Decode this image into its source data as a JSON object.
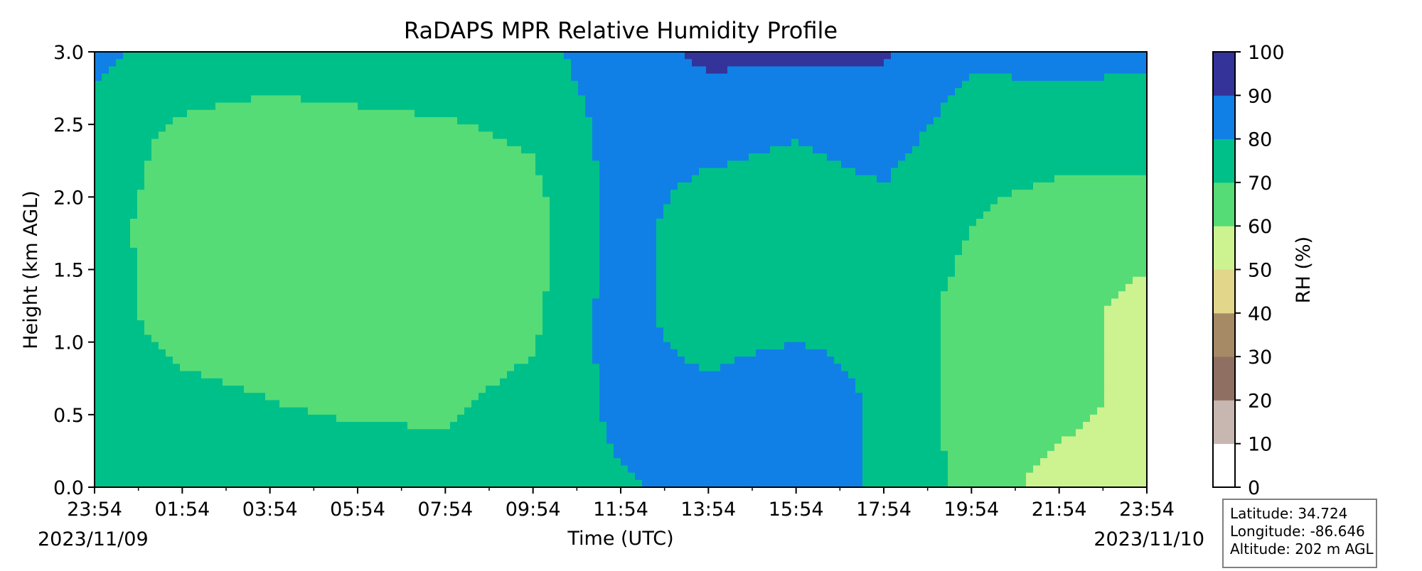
{
  "chart_data": {
    "type": "heatmap",
    "title": "RaDAPS MPR Relative Humidity Profile",
    "xlabel": "Time (UTC)",
    "ylabel": "Height (km AGL)",
    "x_tick_labels": [
      "23:54",
      "01:54",
      "03:54",
      "05:54",
      "07:54",
      "09:54",
      "11:54",
      "13:54",
      "15:54",
      "17:54",
      "19:54",
      "21:54",
      "23:54"
    ],
    "x_hours": [
      0,
      24
    ],
    "date_start": "2023/11/09",
    "date_end": "2023/11/10",
    "y_tick_labels": [
      "0.0",
      "0.5",
      "1.0",
      "1.5",
      "2.0",
      "2.5",
      "3.0"
    ],
    "ylim": [
      0,
      3
    ],
    "colorbar": {
      "label": "RH (%)",
      "levels": [
        0,
        10,
        20,
        30,
        40,
        50,
        60,
        70,
        80,
        90,
        100
      ],
      "tick_labels": [
        "0",
        "10",
        "20",
        "30",
        "40",
        "50",
        "60",
        "70",
        "80",
        "90",
        "100"
      ],
      "colors": [
        "#ffffff",
        "#c8b6b0",
        "#8f6f62",
        "#a68a65",
        "#e2d68a",
        "#cdf290",
        "#56dc76",
        "#00c08a",
        "#1080e6",
        "#34339a"
      ]
    },
    "rh_grid_note": "RH (%) sampled every 2 h (rows) at heights 0.0-3.0 km (columns, step 0.5)",
    "rh_grid": [
      [
        72,
        75,
        74,
        73,
        74,
        83
      ],
      [
        74,
        72,
        66,
        66,
        68,
        75
      ],
      [
        73,
        70,
        66,
        64,
        66,
        74
      ],
      [
        73,
        69,
        65,
        65,
        67,
        75
      ],
      [
        72,
        69,
        66,
        66,
        68,
        76
      ],
      [
        72,
        72,
        68,
        66,
        71,
        77
      ],
      [
        79,
        83,
        85,
        84,
        84,
        86
      ],
      [
        83,
        84,
        72,
        74,
        83,
        92
      ],
      [
        85,
        90,
        75,
        74,
        80,
        92
      ],
      [
        78,
        77,
        75,
        76,
        84,
        91
      ],
      [
        67,
        66,
        67,
        70,
        74,
        82
      ],
      [
        55,
        65,
        64,
        65,
        74,
        83
      ],
      [
        53,
        55,
        56,
        65,
        74,
        82
      ]
    ]
  },
  "site": {
    "latitude": "Latitude: 34.724",
    "longitude": "Longitude: -86.646",
    "altitude": "Altitude: 202 m AGL"
  }
}
